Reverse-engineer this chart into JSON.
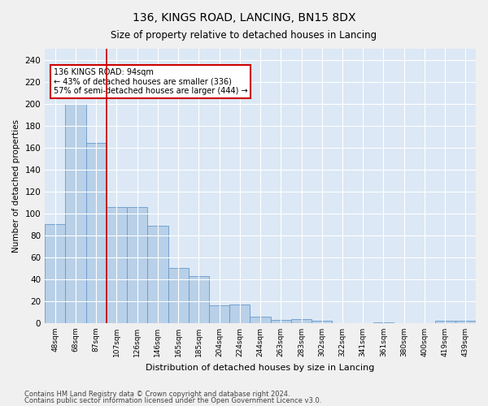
{
  "title1": "136, KINGS ROAD, LANCING, BN15 8DX",
  "title2": "Size of property relative to detached houses in Lancing",
  "xlabel": "Distribution of detached houses by size in Lancing",
  "ylabel": "Number of detached properties",
  "categories": [
    "48sqm",
    "68sqm",
    "87sqm",
    "107sqm",
    "126sqm",
    "146sqm",
    "165sqm",
    "185sqm",
    "204sqm",
    "224sqm",
    "244sqm",
    "263sqm",
    "283sqm",
    "302sqm",
    "322sqm",
    "341sqm",
    "361sqm",
    "380sqm",
    "400sqm",
    "419sqm",
    "439sqm"
  ],
  "values": [
    90,
    200,
    164,
    106,
    106,
    89,
    50,
    43,
    16,
    17,
    6,
    3,
    4,
    2,
    0,
    0,
    1,
    0,
    0,
    2,
    2
  ],
  "bar_color": "#b8d0e8",
  "bar_edge_color": "#6699cc",
  "vline_x": 2.5,
  "vline_color": "#cc0000",
  "annotation_text": "136 KINGS ROAD: 94sqm\n← 43% of detached houses are smaller (336)\n57% of semi-detached houses are larger (444) →",
  "annotation_box_color": "#ffffff",
  "annotation_box_edge_color": "#cc0000",
  "ylim": [
    0,
    250
  ],
  "yticks": [
    0,
    20,
    40,
    60,
    80,
    100,
    120,
    140,
    160,
    180,
    200,
    220,
    240
  ],
  "footer1": "Contains HM Land Registry data © Crown copyright and database right 2024.",
  "footer2": "Contains public sector information licensed under the Open Government Licence v3.0.",
  "fig_bg_color": "#f0f0f0",
  "plot_bg_color": "#dce8f5"
}
